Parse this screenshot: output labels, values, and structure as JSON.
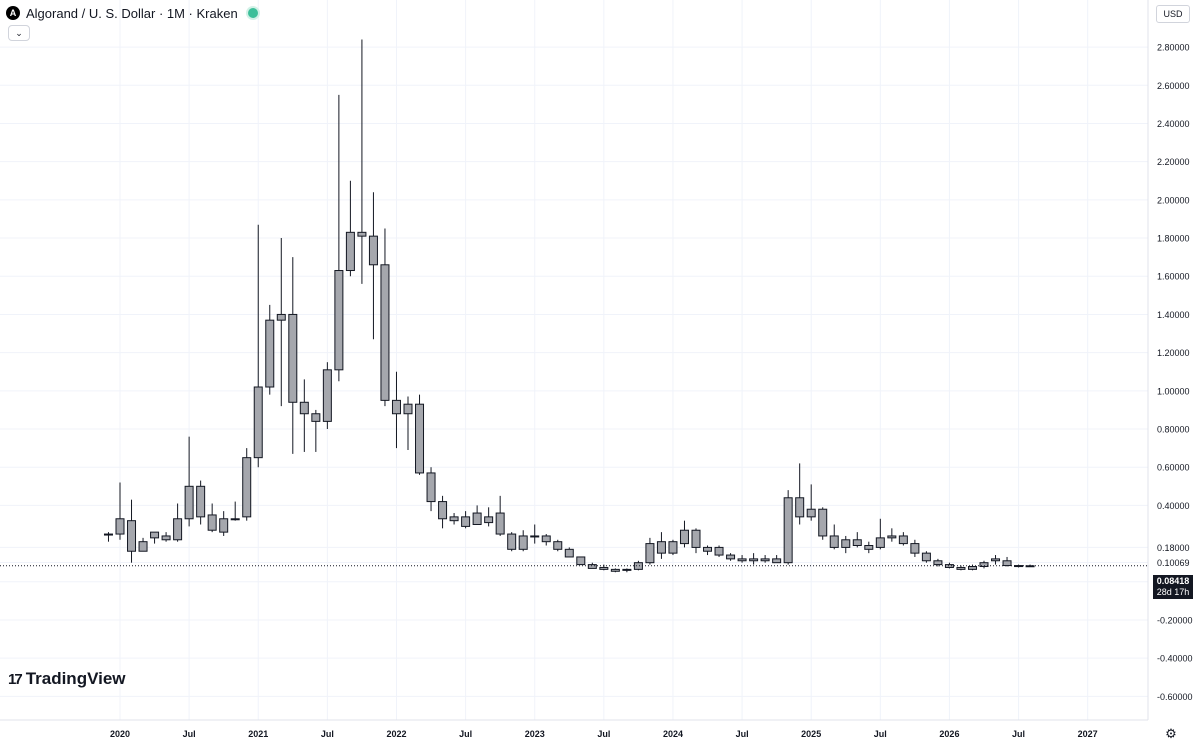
{
  "header": {
    "symbol_title": "Algorand / U. S. Dollar · 1M · Kraken",
    "logo_icon": "algorand-logo-icon",
    "status": "market-open-dot"
  },
  "toolbar": {
    "currency_label": "USD",
    "collapse_icon": "chevron-down-icon"
  },
  "brand": {
    "name": "TradingView",
    "icon": "tradingview-logo-icon"
  },
  "settings_icon": "gear-icon",
  "last_price": {
    "value": "0.08418",
    "countdown": "28d 17h",
    "color": "#131722"
  },
  "colors": {
    "candle_fill": "#a5a7ad",
    "candle_border": "#131722",
    "grid": "#f0f3fa"
  },
  "chart_data": {
    "type": "candlestick",
    "title": "Algorand / U. S. Dollar · 1M · Kraken",
    "y_axis": {
      "ticks": [
        2.8,
        2.6,
        2.4,
        2.2,
        2.0,
        1.8,
        1.6,
        1.4,
        1.2,
        1.0,
        0.8,
        0.6,
        0.4,
        0.18,
        0.10069,
        0.0,
        -0.2,
        -0.4,
        -0.6
      ],
      "tick_labels": [
        "2.80000",
        "2.60000",
        "2.40000",
        "2.20000",
        "2.00000",
        "1.80000",
        "1.60000",
        "1.40000",
        "1.20000",
        "1.00000",
        "0.80000",
        "0.60000",
        "0.40000",
        "0.18000",
        "0.10069",
        "0.00000",
        "-0.20000",
        "-0.40000",
        "-0.60000"
      ],
      "range": [
        -0.64,
        2.9
      ],
      "side": "right"
    },
    "x_axis": {
      "ticks": [
        {
          "label": "2020",
          "date": "2020-01"
        },
        {
          "label": "Jul",
          "date": "2020-07"
        },
        {
          "label": "2021",
          "date": "2021-01"
        },
        {
          "label": "Jul",
          "date": "2021-07"
        },
        {
          "label": "2022",
          "date": "2022-01"
        },
        {
          "label": "Jul",
          "date": "2022-07"
        },
        {
          "label": "2023",
          "date": "2023-01"
        },
        {
          "label": "Jul",
          "date": "2023-07"
        },
        {
          "label": "2024",
          "date": "2024-01"
        },
        {
          "label": "Jul",
          "date": "2024-07"
        },
        {
          "label": "2025",
          "date": "2025-01"
        },
        {
          "label": "Jul",
          "date": "2025-07"
        },
        {
          "label": "2026",
          "date": "2026-01"
        },
        {
          "label": "Jul",
          "date": "2026-07"
        },
        {
          "label": "2027",
          "date": "2027-01"
        }
      ]
    },
    "grid": true,
    "candles": [
      {
        "t": "2019-12",
        "o": 0.25,
        "h": 0.26,
        "l": 0.21,
        "c": 0.25
      },
      {
        "t": "2020-01",
        "o": 0.25,
        "h": 0.52,
        "l": 0.22,
        "c": 0.33
      },
      {
        "t": "2020-02",
        "o": 0.32,
        "h": 0.43,
        "l": 0.1,
        "c": 0.16
      },
      {
        "t": "2020-03",
        "o": 0.21,
        "h": 0.23,
        "l": 0.16,
        "c": 0.16
      },
      {
        "t": "2020-04",
        "o": 0.23,
        "h": 0.26,
        "l": 0.2,
        "c": 0.26
      },
      {
        "t": "2020-05",
        "o": 0.24,
        "h": 0.26,
        "l": 0.21,
        "c": 0.22
      },
      {
        "t": "2020-06",
        "o": 0.33,
        "h": 0.41,
        "l": 0.21,
        "c": 0.22
      },
      {
        "t": "2020-07",
        "o": 0.33,
        "h": 0.76,
        "l": 0.29,
        "c": 0.5
      },
      {
        "t": "2020-08",
        "o": 0.5,
        "h": 0.53,
        "l": 0.3,
        "c": 0.34
      },
      {
        "t": "2020-09",
        "o": 0.35,
        "h": 0.41,
        "l": 0.26,
        "c": 0.27
      },
      {
        "t": "2020-10",
        "o": 0.33,
        "h": 0.37,
        "l": 0.24,
        "c": 0.26
      },
      {
        "t": "2020-11",
        "o": 0.33,
        "h": 0.42,
        "l": 0.32,
        "c": 0.33
      },
      {
        "t": "2020-12",
        "o": 0.34,
        "h": 0.7,
        "l": 0.32,
        "c": 0.65
      },
      {
        "t": "2021-01",
        "o": 0.65,
        "h": 1.87,
        "l": 0.6,
        "c": 1.02
      },
      {
        "t": "2021-02",
        "o": 1.02,
        "h": 1.45,
        "l": 0.98,
        "c": 1.37
      },
      {
        "t": "2021-03",
        "o": 1.37,
        "h": 1.8,
        "l": 0.92,
        "c": 1.4
      },
      {
        "t": "2021-04",
        "o": 1.4,
        "h": 1.7,
        "l": 0.67,
        "c": 0.94
      },
      {
        "t": "2021-05",
        "o": 0.94,
        "h": 1.06,
        "l": 0.68,
        "c": 0.88
      },
      {
        "t": "2021-06",
        "o": 0.88,
        "h": 0.9,
        "l": 0.68,
        "c": 0.84
      },
      {
        "t": "2021-07",
        "o": 0.84,
        "h": 1.15,
        "l": 0.8,
        "c": 1.11
      },
      {
        "t": "2021-08",
        "o": 1.11,
        "h": 2.55,
        "l": 1.05,
        "c": 1.63
      },
      {
        "t": "2021-09",
        "o": 1.63,
        "h": 2.1,
        "l": 1.6,
        "c": 1.83
      },
      {
        "t": "2021-10",
        "o": 1.83,
        "h": 2.84,
        "l": 1.56,
        "c": 1.81
      },
      {
        "t": "2021-11",
        "o": 1.81,
        "h": 2.04,
        "l": 1.27,
        "c": 1.66
      },
      {
        "t": "2021-12",
        "o": 1.66,
        "h": 1.85,
        "l": 0.92,
        "c": 0.95
      },
      {
        "t": "2022-01",
        "o": 0.95,
        "h": 1.1,
        "l": 0.7,
        "c": 0.88
      },
      {
        "t": "2022-02",
        "o": 0.88,
        "h": 0.97,
        "l": 0.69,
        "c": 0.93
      },
      {
        "t": "2022-03",
        "o": 0.93,
        "h": 0.98,
        "l": 0.56,
        "c": 0.57
      },
      {
        "t": "2022-04",
        "o": 0.57,
        "h": 0.6,
        "l": 0.37,
        "c": 0.42
      },
      {
        "t": "2022-05",
        "o": 0.42,
        "h": 0.45,
        "l": 0.28,
        "c": 0.33
      },
      {
        "t": "2022-06",
        "o": 0.34,
        "h": 0.36,
        "l": 0.3,
        "c": 0.32
      },
      {
        "t": "2022-07",
        "o": 0.34,
        "h": 0.37,
        "l": 0.28,
        "c": 0.29
      },
      {
        "t": "2022-08",
        "o": 0.36,
        "h": 0.4,
        "l": 0.3,
        "c": 0.3
      },
      {
        "t": "2022-09",
        "o": 0.34,
        "h": 0.39,
        "l": 0.29,
        "c": 0.31
      },
      {
        "t": "2022-10",
        "o": 0.36,
        "h": 0.45,
        "l": 0.24,
        "c": 0.25
      },
      {
        "t": "2022-11",
        "o": 0.25,
        "h": 0.26,
        "l": 0.16,
        "c": 0.17
      },
      {
        "t": "2022-12",
        "o": 0.24,
        "h": 0.27,
        "l": 0.16,
        "c": 0.17
      },
      {
        "t": "2023-01",
        "o": 0.24,
        "h": 0.3,
        "l": 0.2,
        "c": 0.24
      },
      {
        "t": "2023-02",
        "o": 0.24,
        "h": 0.25,
        "l": 0.19,
        "c": 0.21
      },
      {
        "t": "2023-03",
        "o": 0.21,
        "h": 0.22,
        "l": 0.16,
        "c": 0.17
      },
      {
        "t": "2023-04",
        "o": 0.17,
        "h": 0.18,
        "l": 0.13,
        "c": 0.13
      },
      {
        "t": "2023-05",
        "o": 0.13,
        "h": 0.13,
        "l": 0.09,
        "c": 0.09
      },
      {
        "t": "2023-06",
        "o": 0.09,
        "h": 0.1,
        "l": 0.07,
        "c": 0.07
      },
      {
        "t": "2023-07",
        "o": 0.075,
        "h": 0.09,
        "l": 0.06,
        "c": 0.065
      },
      {
        "t": "2023-08",
        "o": 0.065,
        "h": 0.07,
        "l": 0.05,
        "c": 0.055
      },
      {
        "t": "2023-09",
        "o": 0.06,
        "h": 0.07,
        "l": 0.05,
        "c": 0.065
      },
      {
        "t": "2023-10",
        "o": 0.065,
        "h": 0.11,
        "l": 0.06,
        "c": 0.1
      },
      {
        "t": "2023-11",
        "o": 0.1,
        "h": 0.23,
        "l": 0.09,
        "c": 0.2
      },
      {
        "t": "2023-12",
        "o": 0.15,
        "h": 0.26,
        "l": 0.12,
        "c": 0.21
      },
      {
        "t": "2024-01",
        "o": 0.21,
        "h": 0.22,
        "l": 0.14,
        "c": 0.15
      },
      {
        "t": "2024-02",
        "o": 0.2,
        "h": 0.32,
        "l": 0.18,
        "c": 0.27
      },
      {
        "t": "2024-03",
        "o": 0.27,
        "h": 0.28,
        "l": 0.15,
        "c": 0.18
      },
      {
        "t": "2024-04",
        "o": 0.18,
        "h": 0.19,
        "l": 0.14,
        "c": 0.16
      },
      {
        "t": "2024-05",
        "o": 0.18,
        "h": 0.19,
        "l": 0.13,
        "c": 0.14
      },
      {
        "t": "2024-06",
        "o": 0.14,
        "h": 0.15,
        "l": 0.11,
        "c": 0.12
      },
      {
        "t": "2024-07",
        "o": 0.12,
        "h": 0.14,
        "l": 0.1,
        "c": 0.11
      },
      {
        "t": "2024-08",
        "o": 0.11,
        "h": 0.15,
        "l": 0.09,
        "c": 0.12
      },
      {
        "t": "2024-09",
        "o": 0.11,
        "h": 0.14,
        "l": 0.1,
        "c": 0.12
      },
      {
        "t": "2024-10",
        "o": 0.12,
        "h": 0.14,
        "l": 0.1,
        "c": 0.1
      },
      {
        "t": "2024-11",
        "o": 0.1,
        "h": 0.48,
        "l": 0.09,
        "c": 0.44
      },
      {
        "t": "2024-12",
        "o": 0.44,
        "h": 0.62,
        "l": 0.3,
        "c": 0.34
      },
      {
        "t": "2025-01",
        "o": 0.38,
        "h": 0.51,
        "l": 0.32,
        "c": 0.34
      },
      {
        "t": "2025-02",
        "o": 0.38,
        "h": 0.39,
        "l": 0.22,
        "c": 0.24
      },
      {
        "t": "2025-03",
        "o": 0.24,
        "h": 0.3,
        "l": 0.17,
        "c": 0.18
      },
      {
        "t": "2025-04",
        "o": 0.22,
        "h": 0.24,
        "l": 0.15,
        "c": 0.18
      },
      {
        "t": "2025-05",
        "o": 0.22,
        "h": 0.26,
        "l": 0.18,
        "c": 0.19
      },
      {
        "t": "2025-06",
        "o": 0.19,
        "h": 0.21,
        "l": 0.15,
        "c": 0.17
      },
      {
        "t": "2025-07",
        "o": 0.23,
        "h": 0.33,
        "l": 0.17,
        "c": 0.18
      },
      {
        "t": "2025-08",
        "o": 0.23,
        "h": 0.28,
        "l": 0.21,
        "c": 0.24
      },
      {
        "t": "2025-09",
        "o": 0.24,
        "h": 0.26,
        "l": 0.19,
        "c": 0.2
      },
      {
        "t": "2025-10",
        "o": 0.2,
        "h": 0.22,
        "l": 0.13,
        "c": 0.15
      },
      {
        "t": "2025-11",
        "o": 0.15,
        "h": 0.16,
        "l": 0.1,
        "c": 0.11
      },
      {
        "t": "2025-12",
        "o": 0.11,
        "h": 0.12,
        "l": 0.08,
        "c": 0.09
      },
      {
        "t": "2026-01",
        "o": 0.09,
        "h": 0.1,
        "l": 0.07,
        "c": 0.075
      },
      {
        "t": "2026-02",
        "o": 0.075,
        "h": 0.085,
        "l": 0.06,
        "c": 0.065
      },
      {
        "t": "2026-03",
        "o": 0.065,
        "h": 0.09,
        "l": 0.06,
        "c": 0.08
      },
      {
        "t": "2026-04",
        "o": 0.08,
        "h": 0.11,
        "l": 0.07,
        "c": 0.1
      },
      {
        "t": "2026-05",
        "o": 0.12,
        "h": 0.14,
        "l": 0.09,
        "c": 0.11
      },
      {
        "t": "2026-06",
        "o": 0.11,
        "h": 0.13,
        "l": 0.08,
        "c": 0.085
      },
      {
        "t": "2026-07",
        "o": 0.085,
        "h": 0.09,
        "l": 0.075,
        "c": 0.08
      },
      {
        "t": "2026-08",
        "o": 0.08,
        "h": 0.09,
        "l": 0.078,
        "c": 0.084
      }
    ],
    "last_price_line": 0.08418
  }
}
